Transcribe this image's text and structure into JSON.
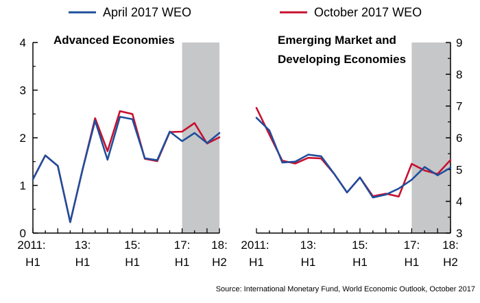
{
  "legend": [
    {
      "label": "April 2017 WEO",
      "color": "#1f4e9c"
    },
    {
      "label": "October 2017 WEO",
      "color": "#c8102e"
    }
  ],
  "source": "Source: International Monetary Fund, World Economic Outlook, October 2017",
  "chart_data": [
    {
      "type": "line",
      "title": "Advanced Economies",
      "x": [
        "2011:H1",
        "2011:H2",
        "2012:H1",
        "2012:H2",
        "2013:H1",
        "2013:H2",
        "2014:H1",
        "2014:H2",
        "2015:H1",
        "2015:H2",
        "2016:H1",
        "2016:H2",
        "2017:H1",
        "2017:H2",
        "2018:H1",
        "2018:H2"
      ],
      "x_tick_labels": [
        {
          "line1": "2011:",
          "line2": "H1",
          "index": 0
        },
        {
          "line1": "13:",
          "line2": "H1",
          "index": 4
        },
        {
          "line1": "15:",
          "line2": "H1",
          "index": 8
        },
        {
          "line1": "17:",
          "line2": "H1",
          "index": 12
        },
        {
          "line1": "18:",
          "line2": "H2",
          "index": 15
        }
      ],
      "y_axis_side": "left",
      "ylim": [
        0,
        4
      ],
      "y_ticks": [
        "0",
        "1",
        "2",
        "3",
        "4"
      ],
      "projection_shading": {
        "from_index": 12,
        "to_index": 15
      },
      "series": [
        {
          "name": "April 2017 WEO",
          "color": "#1f4e9c",
          "values": [
            1.13,
            1.63,
            1.41,
            0.23,
            1.34,
            2.36,
            1.54,
            2.44,
            2.39,
            1.57,
            1.53,
            2.13,
            1.93,
            2.1,
            1.89,
            2.1
          ]
        },
        {
          "name": "October 2017 WEO",
          "color": "#c8102e",
          "values": [
            1.13,
            1.63,
            1.41,
            0.23,
            1.34,
            2.41,
            1.72,
            2.56,
            2.5,
            1.56,
            1.51,
            2.12,
            2.13,
            2.31,
            1.88,
            2.01
          ]
        }
      ]
    },
    {
      "type": "line",
      "title": "Emerging Market and Developing Economies",
      "title_lines": [
        "Emerging Market and",
        "Developing Economies"
      ],
      "x": [
        "2011:H1",
        "2011:H2",
        "2012:H1",
        "2012:H2",
        "2013:H1",
        "2013:H2",
        "2014:H1",
        "2014:H2",
        "2015:H1",
        "2015:H2",
        "2016:H1",
        "2016:H2",
        "2017:H1",
        "2017:H2",
        "2018:H1",
        "2018:H2"
      ],
      "x_tick_labels": [
        {
          "line1": "2011:",
          "line2": "H1",
          "index": 0
        },
        {
          "line1": "13:",
          "line2": "H1",
          "index": 4
        },
        {
          "line1": "15:",
          "line2": "H1",
          "index": 8
        },
        {
          "line1": "17:",
          "line2": "H1",
          "index": 12
        },
        {
          "line1": "18:",
          "line2": "H2",
          "index": 15
        }
      ],
      "y_axis_side": "right",
      "ylim": [
        3,
        9
      ],
      "y_ticks": [
        "3",
        "4",
        "5",
        "6",
        "7",
        "8",
        "9"
      ],
      "projection_shading": {
        "from_index": 12,
        "to_index": 15
      },
      "series": [
        {
          "name": "April 2017 WEO",
          "color": "#1f4e9c",
          "values": [
            6.63,
            6.23,
            5.22,
            5.25,
            5.47,
            5.42,
            4.87,
            4.28,
            4.75,
            4.12,
            4.21,
            4.4,
            4.68,
            5.08,
            4.82,
            5.06
          ]
        },
        {
          "name": "October 2017 WEO",
          "color": "#c8102e",
          "values": [
            6.94,
            6.1,
            5.28,
            5.19,
            5.37,
            5.35,
            4.87,
            4.28,
            4.75,
            4.16,
            4.24,
            4.15,
            5.18,
            4.97,
            4.86,
            5.3
          ]
        }
      ]
    }
  ]
}
